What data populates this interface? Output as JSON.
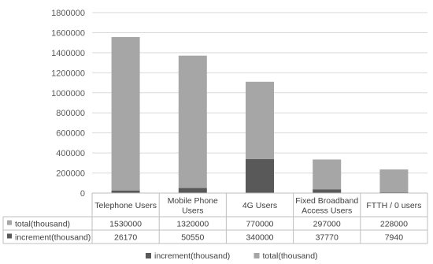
{
  "chart_data": {
    "type": "bar",
    "stacked": true,
    "categories": [
      "Telephone Users",
      "Mobile Phone Users",
      "4G Users",
      "Fixed Broadband Access Users",
      "FTTH / 0 users"
    ],
    "categories_wrapped": [
      [
        "Telephone Users"
      ],
      [
        "Mobile Phone",
        "Users"
      ],
      [
        "4G Users"
      ],
      [
        "Fixed Broadband",
        "Access Users"
      ],
      [
        "FTTH / 0 users"
      ]
    ],
    "series": [
      {
        "name": "increment(thousand)",
        "values": [
          26170,
          50550,
          340000,
          37770,
          7940
        ],
        "color": "#595959"
      },
      {
        "name": "total(thousand)",
        "values": [
          1530000,
          1320000,
          770000,
          297000,
          228000
        ],
        "color": "#a6a6a6"
      }
    ],
    "table_rows": [
      {
        "label": "total(thousand)",
        "color": "#a6a6a6",
        "values": [
          "1530000",
          "1320000",
          "770000",
          "297000",
          "228000"
        ]
      },
      {
        "label": "increment(thousand)",
        "color": "#595959",
        "values": [
          "26170",
          "50550",
          "340000",
          "37770",
          "7940"
        ]
      }
    ],
    "ylim": [
      0,
      1800000
    ],
    "yticks": [
      "0",
      "200000",
      "400000",
      "600000",
      "800000",
      "1000000",
      "1200000",
      "1400000",
      "1600000",
      "1800000"
    ],
    "legend": {
      "position": "bottom",
      "entries": [
        "increment(thousand)",
        "total(thousand)"
      ]
    },
    "grid": true
  }
}
